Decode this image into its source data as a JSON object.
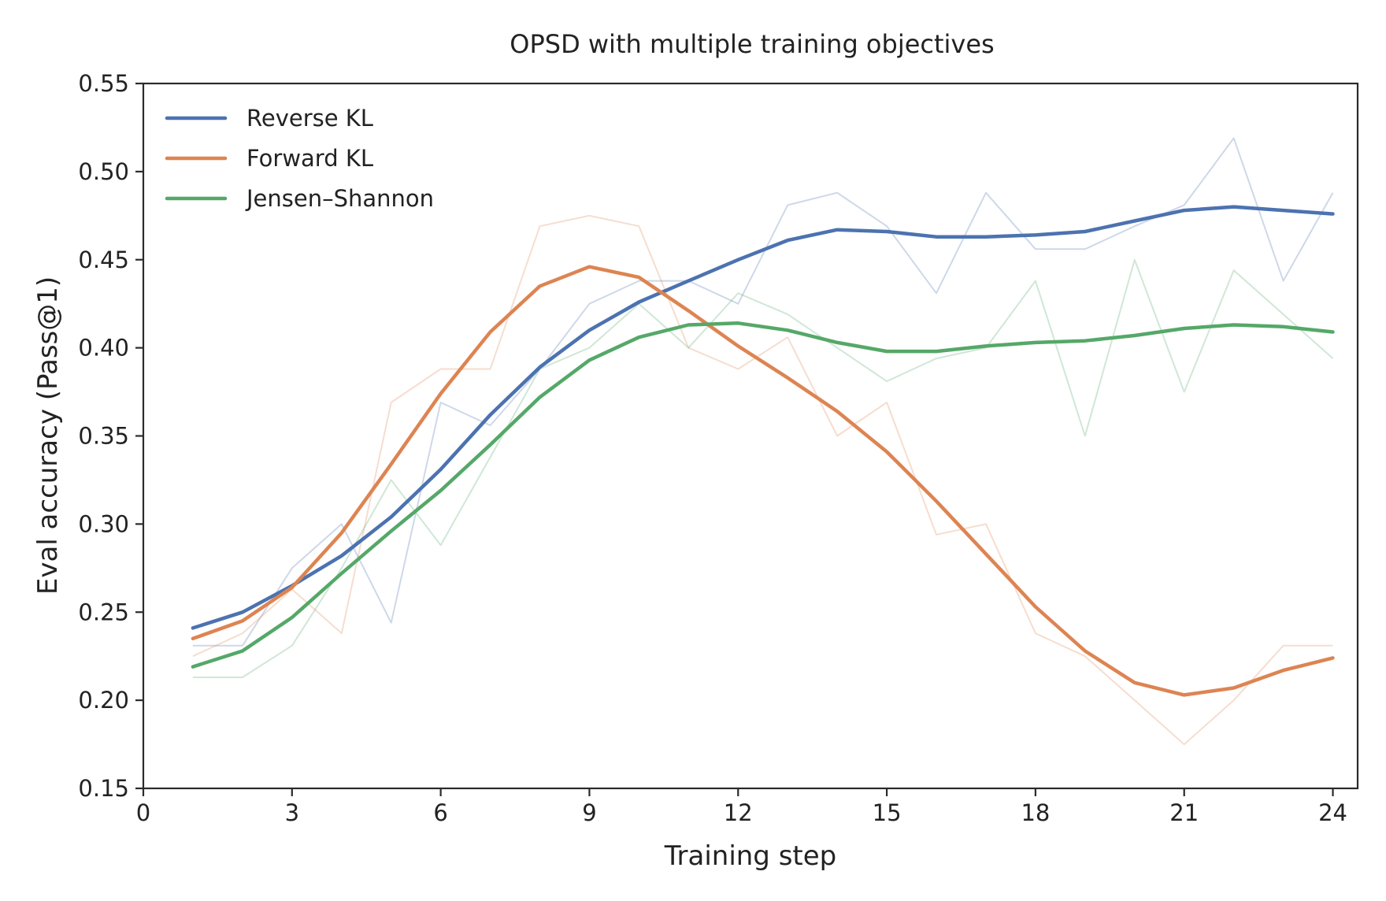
{
  "chart_data": {
    "type": "line",
    "title": "OPSD with multiple training objectives",
    "xlabel": "Training step",
    "ylabel": "Eval accuracy (Pass@1)",
    "xlim": [
      0,
      24.5
    ],
    "ylim": [
      0.15,
      0.55
    ],
    "xticks": [
      0,
      3,
      6,
      9,
      12,
      15,
      18,
      21,
      24
    ],
    "yticks": [
      0.15,
      0.2,
      0.25,
      0.3,
      0.35,
      0.4,
      0.45,
      0.5,
      0.55
    ],
    "xtick_labels": [
      "0",
      "3",
      "6",
      "9",
      "12",
      "15",
      "18",
      "21",
      "24"
    ],
    "ytick_labels": [
      "0.15",
      "0.20",
      "0.25",
      "0.30",
      "0.35",
      "0.40",
      "0.45",
      "0.50",
      "0.55"
    ],
    "grid": false,
    "legend_position": "top-left",
    "x": [
      1,
      2,
      3,
      4,
      5,
      6,
      7,
      8,
      9,
      10,
      11,
      12,
      13,
      14,
      15,
      16,
      17,
      18,
      19,
      20,
      21,
      22,
      23,
      24
    ],
    "series": [
      {
        "name": "Reverse KL",
        "color": "#4c72b0",
        "raw": [
          0.231,
          0.231,
          0.275,
          0.3,
          0.244,
          0.369,
          0.356,
          0.388,
          0.425,
          0.438,
          0.438,
          0.425,
          0.481,
          0.488,
          0.469,
          0.431,
          0.488,
          0.456,
          0.456,
          0.469,
          0.481,
          0.519,
          0.438,
          0.488
        ],
        "smoothed": [
          0.241,
          0.25,
          0.265,
          0.282,
          0.304,
          0.331,
          0.362,
          0.389,
          0.41,
          0.426,
          0.438,
          0.45,
          0.461,
          0.467,
          0.466,
          0.463,
          0.463,
          0.464,
          0.466,
          0.472,
          0.478,
          0.48,
          0.478,
          0.476
        ]
      },
      {
        "name": "Forward KL",
        "color": "#dd8452",
        "raw": [
          0.225,
          0.238,
          0.263,
          0.238,
          0.369,
          0.388,
          0.388,
          0.469,
          0.475,
          0.469,
          0.4,
          0.388,
          0.406,
          0.35,
          0.369,
          0.294,
          0.3,
          0.238,
          0.225,
          0.2,
          0.175,
          0.2,
          0.231,
          0.231
        ],
        "smoothed": [
          0.235,
          0.245,
          0.264,
          0.295,
          0.334,
          0.374,
          0.409,
          0.435,
          0.446,
          0.44,
          0.421,
          0.401,
          0.383,
          0.364,
          0.341,
          0.313,
          0.283,
          0.253,
          0.228,
          0.21,
          0.203,
          0.207,
          0.217,
          0.224
        ]
      },
      {
        "name": "Jensen–Shannon",
        "color": "#55a868",
        "raw": [
          0.213,
          0.213,
          0.231,
          0.275,
          0.325,
          0.288,
          0.338,
          0.388,
          0.4,
          0.425,
          0.4,
          0.431,
          0.419,
          0.4,
          0.381,
          0.394,
          0.4,
          0.438,
          0.35,
          0.45,
          0.375,
          0.444,
          0.419,
          0.394
        ],
        "smoothed": [
          0.219,
          0.228,
          0.247,
          0.272,
          0.296,
          0.319,
          0.345,
          0.372,
          0.393,
          0.406,
          0.413,
          0.414,
          0.41,
          0.403,
          0.398,
          0.398,
          0.401,
          0.403,
          0.404,
          0.407,
          0.411,
          0.413,
          0.412,
          0.409
        ]
      }
    ]
  }
}
